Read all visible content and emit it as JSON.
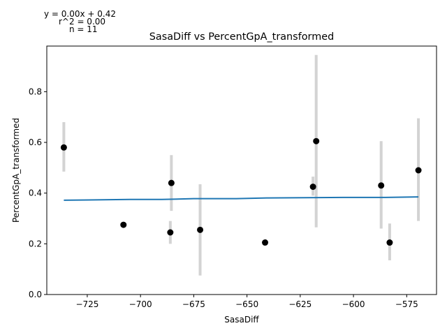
{
  "chart_data": {
    "type": "scatter",
    "title": "SasaDiff vs PercentGpA_transformed",
    "xlabel": "SasaDiff",
    "ylabel": "PercentGpA_transformed",
    "xlim": [
      -744,
      -561
    ],
    "ylim": [
      0,
      0.98
    ],
    "xticks": [
      -725,
      -700,
      -675,
      -650,
      -625,
      -600,
      -575
    ],
    "xtick_labels": [
      "−725",
      "−700",
      "−675",
      "−650",
      "−625",
      "−600",
      "−575"
    ],
    "yticks": [
      0.0,
      0.2,
      0.4,
      0.6,
      0.8
    ],
    "ytick_labels": [
      "0.0",
      "0.2",
      "0.4",
      "0.6",
      "0.8"
    ],
    "grid": false,
    "annotations": [
      "y = 0.00x + 0.42",
      "r^2 = 0.00",
      "n = 11"
    ],
    "points": [
      {
        "x": -736,
        "y": 0.58,
        "err_low": 0.485,
        "err_high": 0.68
      },
      {
        "x": -708,
        "y": 0.275,
        "err_low": null,
        "err_high": null
      },
      {
        "x": -686,
        "y": 0.245,
        "err_low": 0.2,
        "err_high": 0.29
      },
      {
        "x": -685.5,
        "y": 0.44,
        "err_low": 0.33,
        "err_high": 0.55
      },
      {
        "x": -672,
        "y": 0.255,
        "err_low": 0.075,
        "err_high": 0.435
      },
      {
        "x": -641.5,
        "y": 0.205,
        "err_low": null,
        "err_high": null
      },
      {
        "x": -619,
        "y": 0.425,
        "err_low": 0.39,
        "err_high": 0.465
      },
      {
        "x": -617.5,
        "y": 0.605,
        "err_low": 0.265,
        "err_high": 0.945
      },
      {
        "x": -587,
        "y": 0.43,
        "err_low": 0.26,
        "err_high": 0.605
      },
      {
        "x": -583,
        "y": 0.205,
        "err_low": 0.135,
        "err_high": 0.28
      },
      {
        "x": -569.5,
        "y": 0.49,
        "err_low": 0.29,
        "err_high": 0.695
      }
    ],
    "fit_line": {
      "x": [
        -736,
        -705,
        -690,
        -675,
        -655,
        -640,
        -605,
        -585,
        -569.5
      ],
      "y": [
        0.372,
        0.375,
        0.375,
        0.378,
        0.378,
        0.381,
        0.383,
        0.383,
        0.385
      ]
    },
    "colors": {
      "points": "#000000",
      "error_bars": "#d3d3d3",
      "fit_line": "#1f77b4"
    }
  }
}
